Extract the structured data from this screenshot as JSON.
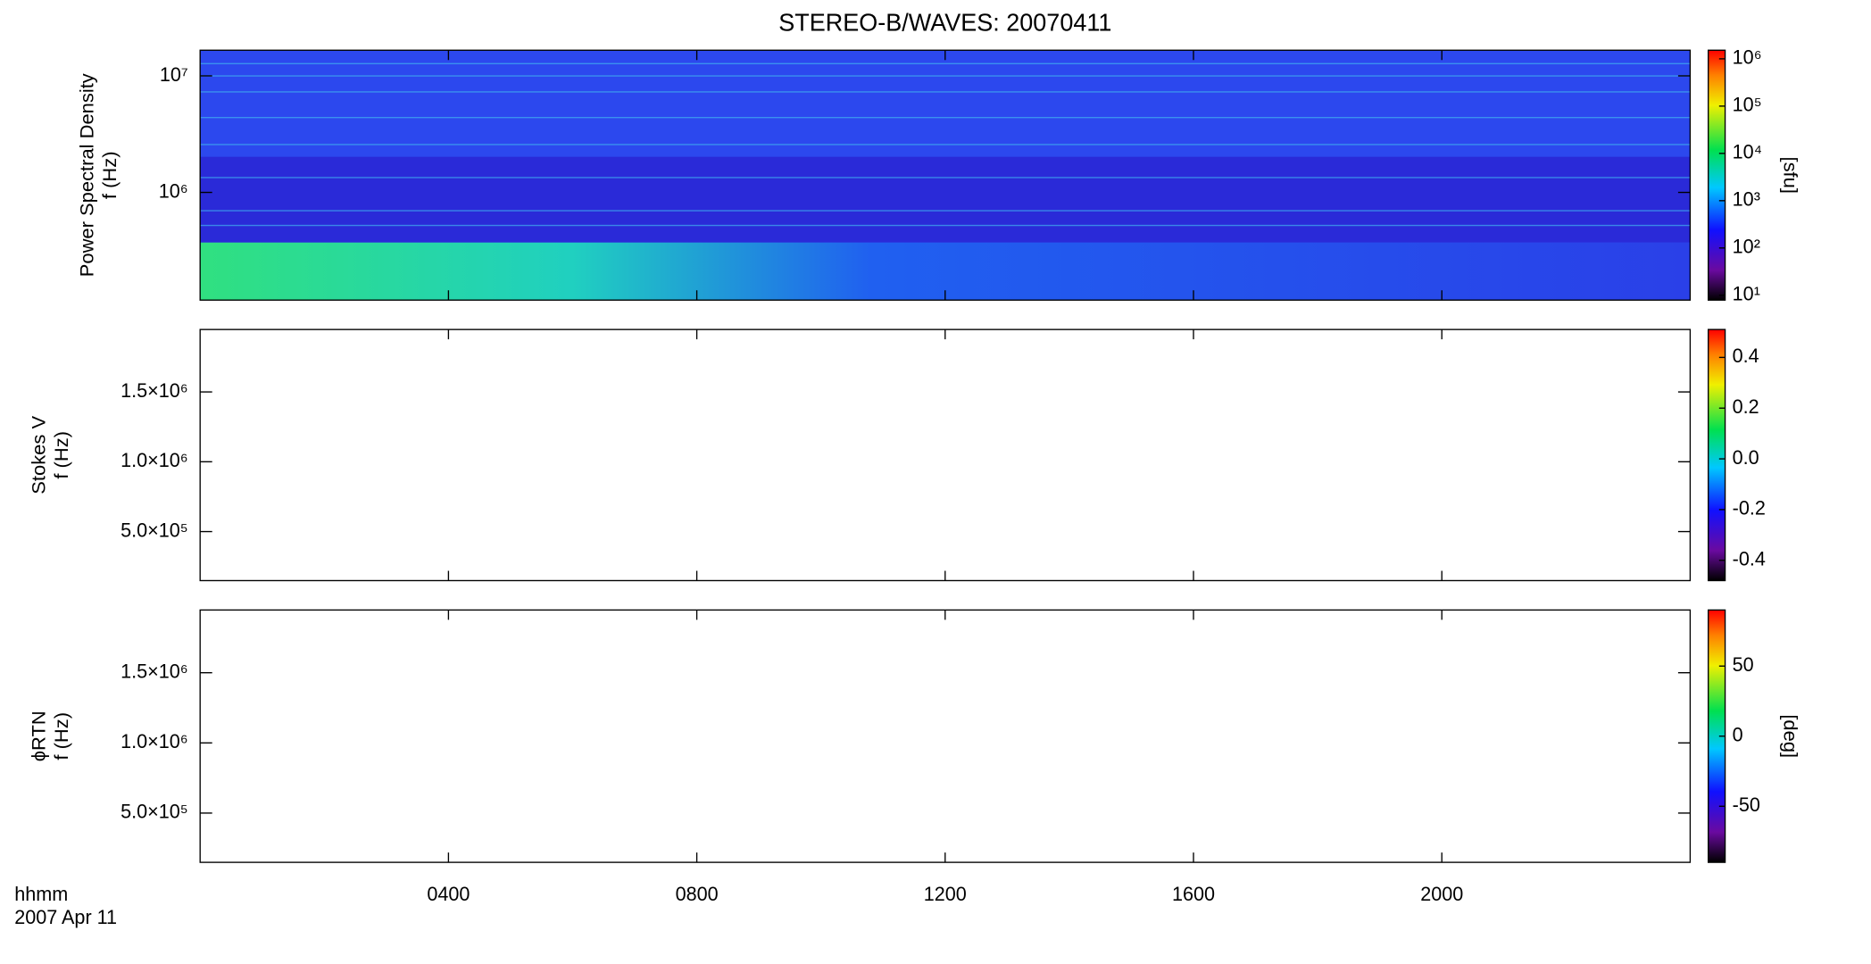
{
  "chart_data": [
    {
      "type": "heatmap",
      "title": "STEREO-B/WAVES: 20070411",
      "ylabel": [
        "Power Spectral Density",
        "f (Hz)"
      ],
      "log_y": true,
      "ylim": [
        119000,
        16600000
      ],
      "yticks": [
        {
          "value": 1000000,
          "label": "10⁶"
        },
        {
          "value": 10000000,
          "label": "10⁷"
        }
      ],
      "colorbar": {
        "label": "[sfu]",
        "log": true,
        "lim": [
          7.9,
          1520000
        ],
        "ticks": [
          {
            "value": 10,
            "label": "10¹"
          },
          {
            "value": 100,
            "label": "10²"
          },
          {
            "value": 1000,
            "label": "10³"
          },
          {
            "value": 10000,
            "label": "10⁴"
          },
          {
            "value": 100000,
            "label": "10⁵"
          },
          {
            "value": 1000000,
            "label": "10⁶"
          }
        ]
      }
    },
    {
      "type": "heatmap",
      "ylabel": [
        "Stokes V",
        "f (Hz)"
      ],
      "log_y": false,
      "ylim": [
        149000,
        1947000
      ],
      "yticks": [
        {
          "value": 500000,
          "label": "5.0×10⁵"
        },
        {
          "value": 1000000,
          "label": "1.0×10⁶"
        },
        {
          "value": 1500000,
          "label": "1.5×10⁶"
        }
      ],
      "colorbar": {
        "log": false,
        "lim": [
          -0.48,
          0.51
        ],
        "ticks": [
          -0.4,
          -0.2,
          {
            "value": 0,
            "label": "0.0"
          },
          0.2,
          0.4
        ]
      }
    },
    {
      "type": "heatmap",
      "ylabel": [
        "ϕRTN",
        "f (Hz)"
      ],
      "log_y": false,
      "ylim": [
        149000,
        1947000
      ],
      "yticks": [
        {
          "value": 500000,
          "label": "5.0×10⁵"
        },
        {
          "value": 1000000,
          "label": "1.0×10⁶"
        },
        {
          "value": 1500000,
          "label": "1.5×10⁶"
        }
      ],
      "colorbar": {
        "label": "[deg]",
        "log": false,
        "lim": [
          -90,
          90
        ],
        "ticks": [
          -50,
          0,
          50
        ]
      },
      "xlabel": "hhmm",
      "xsublabel": "2007 Apr 11",
      "xlim": [
        0,
        24
      ],
      "xticks": [
        {
          "value": 4,
          "label": "0400"
        },
        {
          "value": 8,
          "label": "0800"
        },
        {
          "value": 12,
          "label": "1200"
        },
        {
          "value": 16,
          "label": "1600"
        },
        {
          "value": 20,
          "label": "2000"
        }
      ]
    }
  ]
}
